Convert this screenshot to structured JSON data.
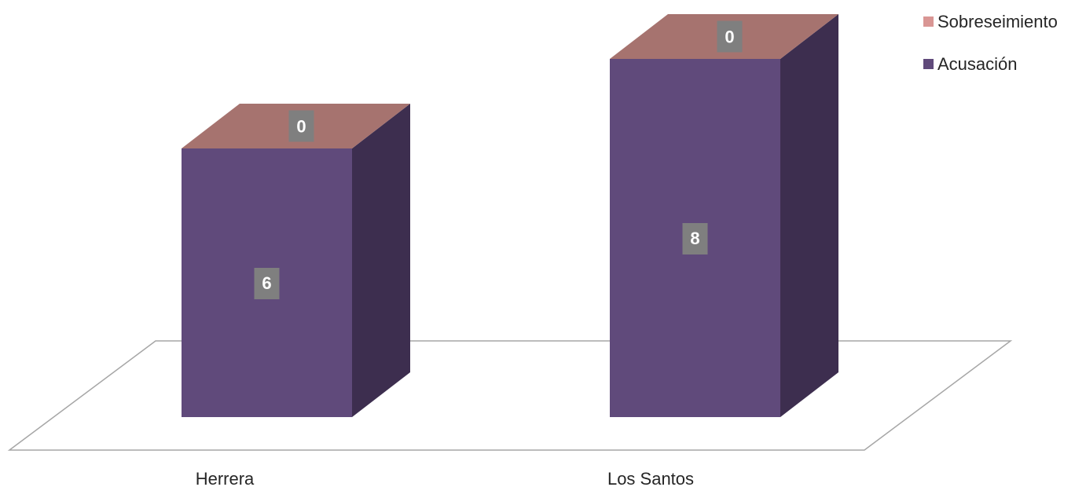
{
  "chart_data": {
    "type": "bar",
    "categories": [
      "Herrera",
      "Los Santos"
    ],
    "series": [
      {
        "name": "Acusación",
        "values": [
          6,
          8
        ],
        "color": "#604a7b",
        "side_color": "#3d2e4f"
      },
      {
        "name": "Sobreseimiento",
        "values": [
          0,
          0
        ],
        "color": "#d99694",
        "top_color": "#a6736f"
      }
    ],
    "stacked": true,
    "three_d": true,
    "legend_position": "top-right",
    "grid": false
  }
}
